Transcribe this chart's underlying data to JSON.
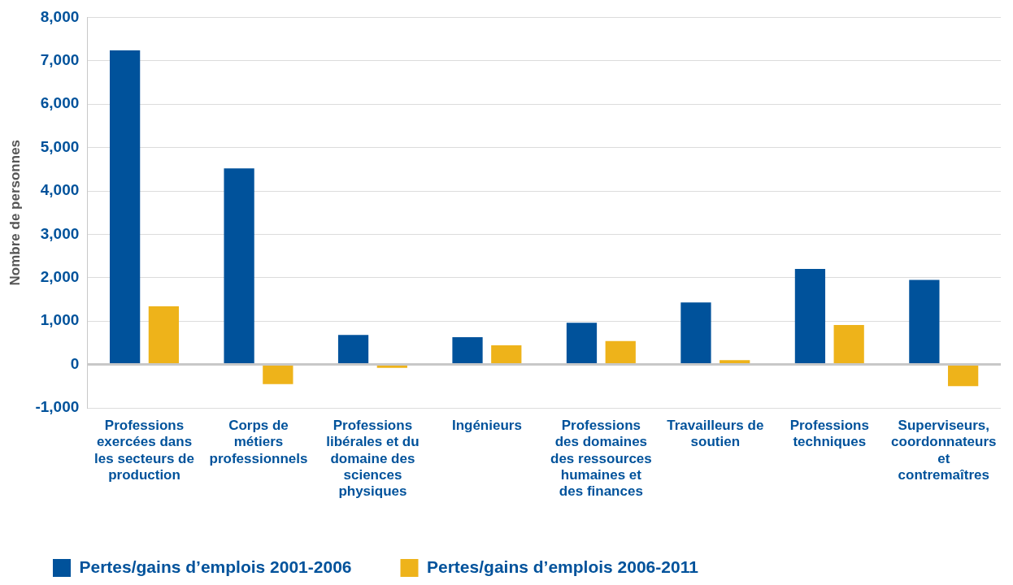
{
  "chart_data": {
    "type": "bar",
    "ylabel": "Nombre de personnes",
    "categories": [
      "Professions exercées dans les secteurs de production",
      "Corps de métiers professionnels",
      "Professions libérales et du domaine des sciences physiques",
      "Ingénieurs",
      "Professions des domaines des ressources humaines et des finances",
      "Travailleurs de soutien",
      "Professions techniques",
      "Superviseurs, coordonnateurs et contremaîtres"
    ],
    "series": [
      {
        "name": "Pertes/gains d’emplois 2001-2006",
        "color": "#00529b",
        "values": [
          7240,
          4520,
          680,
          630,
          960,
          1430,
          2200,
          1950
        ]
      },
      {
        "name": "Pertes/gains d’emplois 2006-2011",
        "color": "#eeb31a",
        "values": [
          1340,
          -450,
          -80,
          440,
          540,
          100,
          910,
          -500
        ]
      }
    ],
    "ylim": [
      -1000,
      8000
    ],
    "yticks": [
      {
        "value": -1000,
        "label": "-1,000"
      },
      0,
      {
        "value": 1000,
        "label": "1,000"
      },
      {
        "value": 2000,
        "label": "2,000"
      },
      {
        "value": 3000,
        "label": "3,000"
      },
      {
        "value": 4000,
        "label": "4,000"
      },
      {
        "value": 5000,
        "label": "5,000"
      },
      {
        "value": 6000,
        "label": "6,000"
      },
      {
        "value": 7000,
        "label": "7,000"
      },
      {
        "value": 8000,
        "label": "8,000"
      }
    ],
    "grid": "y",
    "legend": "bottom"
  }
}
